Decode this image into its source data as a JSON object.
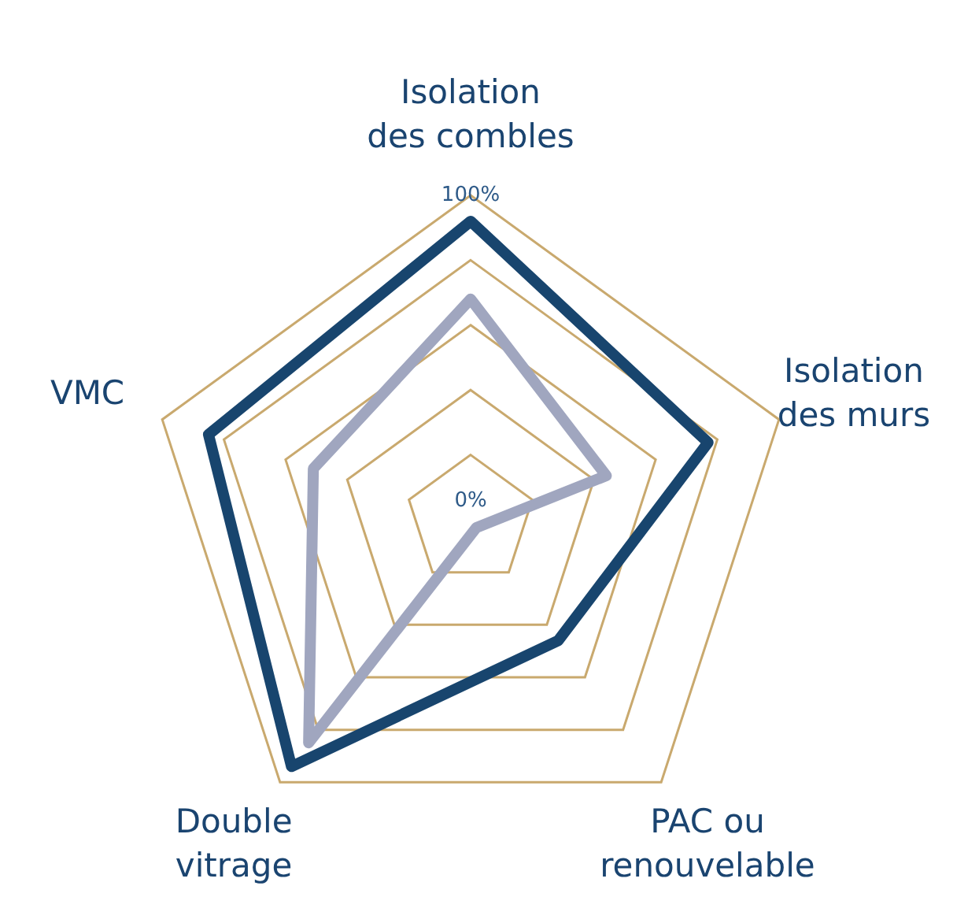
{
  "chart_data": {
    "type": "radar",
    "categories": [
      "Isolation des combles",
      "Isolation des murs",
      "PAC ou renouvelable",
      "Double vitrage",
      "VMC"
    ],
    "series": [
      {
        "color": "#18456e",
        "values": [
          92,
          77,
          46,
          94,
          85
        ]
      },
      {
        "color": "#a0a6bf",
        "values": [
          68,
          44,
          3,
          85,
          51
        ]
      }
    ],
    "ylim": [
      0,
      100
    ],
    "yticks": [
      {
        "value": 0,
        "label": "0%"
      },
      {
        "value": 100,
        "label": "100%"
      }
    ],
    "grid": true,
    "legend": false,
    "marker": "none"
  }
}
